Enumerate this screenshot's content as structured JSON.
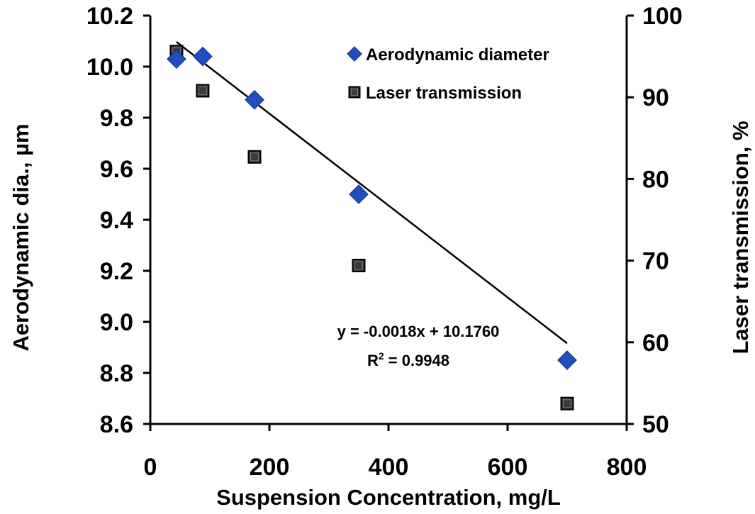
{
  "chart_data": {
    "type": "scatter",
    "title": "",
    "xlabel": "Suspension Concentration, mg/L",
    "ylabel_left": "Aerodynamic dia., µm",
    "ylabel_right": "Laser transmission, %",
    "xlim": [
      0,
      800
    ],
    "ylim_left": [
      8.6,
      10.2
    ],
    "ylim_right": [
      50,
      100
    ],
    "x_ticks": [
      "0",
      "200",
      "400",
      "600",
      "800"
    ],
    "y_left_ticks": [
      "8.6",
      "8.8",
      "9.0",
      "9.2",
      "9.4",
      "9.6",
      "9.8",
      "10.0",
      "10.2"
    ],
    "y_right_ticks": [
      "50",
      "60",
      "70",
      "80",
      "90",
      "100"
    ],
    "grid": false,
    "legend_position": "top-right",
    "series": [
      {
        "name": "Aerodynamic diameter",
        "axis": "left",
        "marker": "diamond",
        "color": "#1f4fbf",
        "x": [
          44,
          88,
          175,
          350,
          700
        ],
        "y": [
          10.03,
          10.04,
          9.87,
          9.5,
          8.85
        ]
      },
      {
        "name": "Laser transmission",
        "axis": "right",
        "marker": "square",
        "color": "#3a3a3a",
        "x": [
          44,
          88,
          175,
          350,
          700
        ],
        "y": [
          95.6,
          90.8,
          82.7,
          69.4,
          52.5
        ]
      }
    ],
    "trendline": {
      "series": "Aerodynamic diameter",
      "slope": -0.0018,
      "intercept": 10.176,
      "x_range": [
        44,
        700
      ],
      "equation_label": "y = -0.0018x + 10.1760",
      "r2_prefix": "R",
      "r2_sup": "2",
      "r2_value": " = 0.9948"
    }
  }
}
